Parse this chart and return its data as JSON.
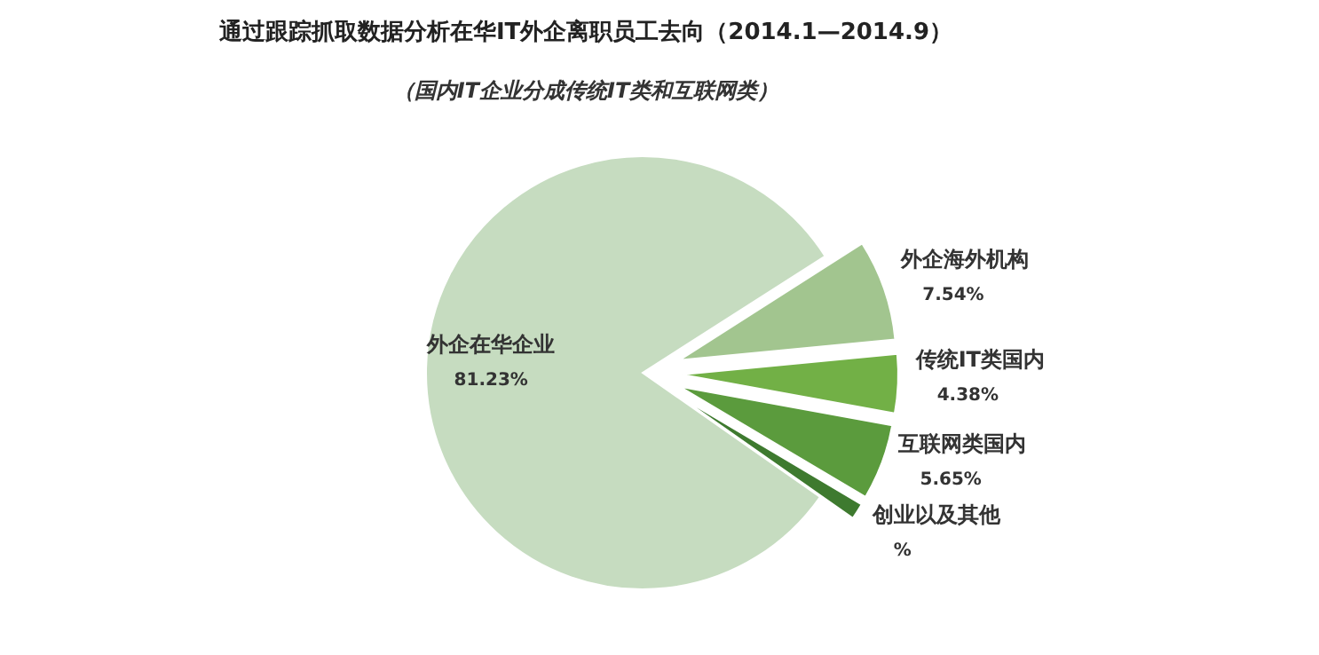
{
  "chart_data": {
    "type": "pie",
    "title": "通过跟踪抓取数据分析在华IT外企离职员工去向（2014.1—2014.9）",
    "subtitle": "（国内IT企业分成传统IT类和互联网类）",
    "categories": [
      "外企在华企业",
      "外企海外机构",
      "传统IT类国内",
      "互联网类国内",
      "创业以及其他"
    ],
    "values": [
      81.23,
      7.54,
      4.38,
      5.65,
      1.2
    ],
    "value_labels": [
      "81.23%",
      "7.54%",
      "4.38%",
      "5.65%",
      "%"
    ],
    "colors": [
      "#c6dcc0",
      "#a2c58f",
      "#72b046",
      "#5b9b3d",
      "#3e7a2f"
    ]
  }
}
